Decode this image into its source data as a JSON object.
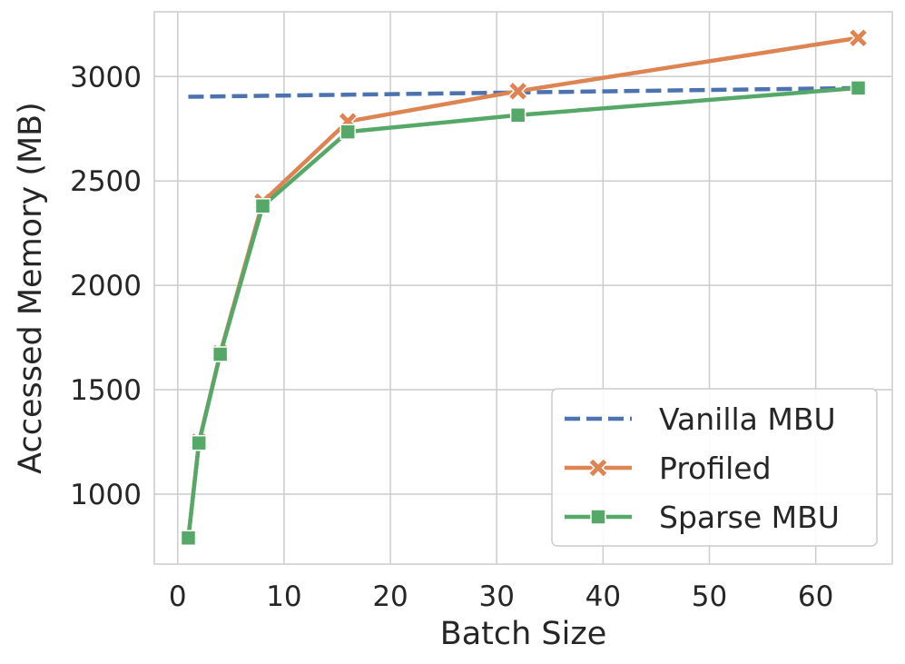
{
  "chart_data": {
    "type": "line",
    "title": "",
    "xlabel": "Batch Size",
    "ylabel": "Accessed Memory (MB)",
    "xlim": [
      -2.2,
      67.2
    ],
    "ylim": [
      665,
      3310
    ],
    "xticks": [
      0,
      10,
      20,
      30,
      40,
      50,
      60
    ],
    "yticks": [
      1000,
      1500,
      2000,
      2500,
      3000
    ],
    "grid": true,
    "legend_position": "lower-right",
    "series": [
      {
        "name": "Vanilla MBU",
        "style": "dashed",
        "marker": "none",
        "color": "#4c72b0",
        "x": [
          1,
          64
        ],
        "y": [
          2903,
          2945
        ]
      },
      {
        "name": "Profiled",
        "style": "solid",
        "marker": "x",
        "color": "#dd8452",
        "x": [
          1,
          2,
          4,
          8,
          16,
          32,
          64
        ],
        "y": [
          790,
          1250,
          1675,
          2400,
          2785,
          2930,
          3185
        ]
      },
      {
        "name": "Sparse MBU",
        "style": "solid",
        "marker": "square",
        "color": "#55a868",
        "x": [
          1,
          2,
          4,
          8,
          16,
          32,
          64
        ],
        "y": [
          790,
          1245,
          1670,
          2380,
          2735,
          2815,
          2945
        ]
      }
    ]
  }
}
